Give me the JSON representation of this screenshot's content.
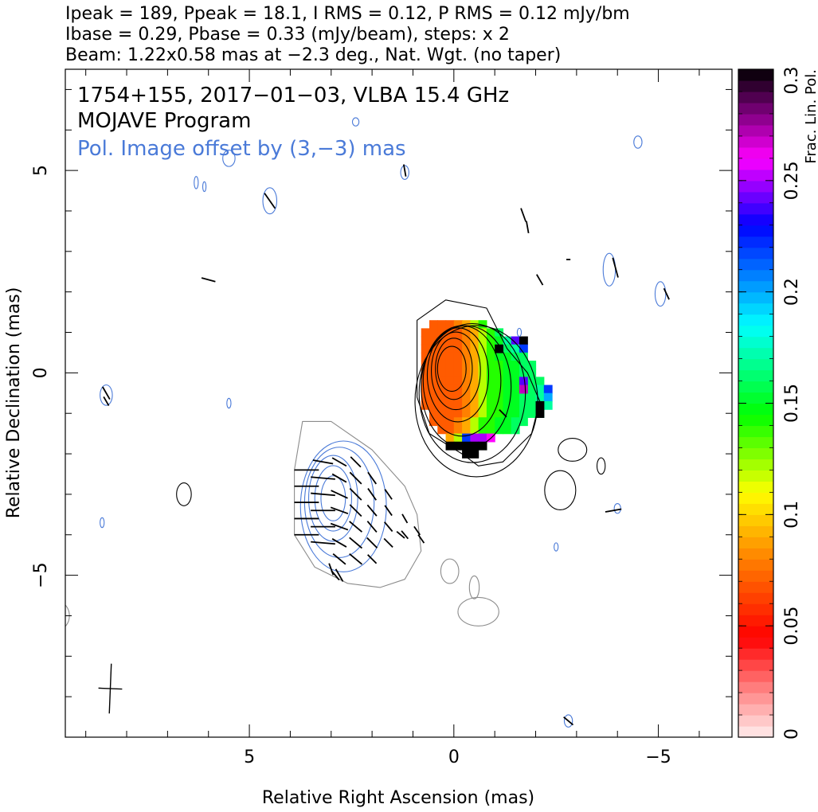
{
  "chart_data": {
    "type": "heatmap",
    "header": {
      "line1": "Ipeak = 189, Ppeak = 18.1, I RMS = 0.12, P RMS = 0.12 mJy/bm",
      "line2": "Ibase = 0.29, Pbase = 0.33 (mJy/beam), steps: x 2",
      "line3": "Beam: 1.22x0.58 mas at −2.3 deg., Nat. Wgt. (no taper)"
    },
    "annotations": {
      "source": "1754+155, 2017−01−03, VLBA 15.4 GHz",
      "program": "MOJAVE Program",
      "offset_note": "Pol. Image offset by (3,−3) mas"
    },
    "xlabel": "Relative Right Ascension (mas)",
    "ylabel": "Relative Declination (mas)",
    "xlim": [
      9.5,
      -6.8
    ],
    "ylim": [
      -9,
      7.5
    ],
    "x_ticks": [
      {
        "value": 5,
        "label": "5"
      },
      {
        "value": 0,
        "label": "0"
      },
      {
        "value": -5,
        "label": "−5"
      }
    ],
    "y_ticks": [
      {
        "value": 5,
        "label": "5"
      },
      {
        "value": 0,
        "label": "0"
      },
      {
        "value": -5,
        "label": "−5"
      }
    ],
    "colorbar": {
      "label": "Frac. Lin. Pol.",
      "range": [
        0,
        0.3
      ],
      "ticks": [
        {
          "value": 0,
          "label": "0"
        },
        {
          "value": 0.05,
          "label": "0.05"
        },
        {
          "value": 0.1,
          "label": "0.1"
        },
        {
          "value": 0.15,
          "label": "0.15"
        },
        {
          "value": 0.2,
          "label": "0.2"
        },
        {
          "value": 0.25,
          "label": "0.25"
        },
        {
          "value": 0.3,
          "label": "0.3"
        }
      ],
      "stops": [
        {
          "value": 0.0,
          "color": "#ffeeee"
        },
        {
          "value": 0.025,
          "color": "#ff7070"
        },
        {
          "value": 0.045,
          "color": "#ff0000"
        },
        {
          "value": 0.08,
          "color": "#ff8000"
        },
        {
          "value": 0.11,
          "color": "#ffff00"
        },
        {
          "value": 0.145,
          "color": "#00ff00"
        },
        {
          "value": 0.185,
          "color": "#00ffff"
        },
        {
          "value": 0.23,
          "color": "#0000ff"
        },
        {
          "value": 0.26,
          "color": "#ff00ff"
        },
        {
          "value": 0.3,
          "color": "#000000"
        }
      ]
    },
    "beam": {
      "major": 1.22,
      "minor": 0.58,
      "pa_deg": -2.3,
      "center": [
        8.4,
        -7.8
      ]
    },
    "stokes_i": {
      "core": [
        0,
        0.1
      ],
      "contour_color": "#000000",
      "contours": [
        {
          "cx": 0.05,
          "cy": 0.1,
          "rx": 0.35,
          "ry": 0.55
        },
        {
          "cx": 0.0,
          "cy": 0.1,
          "rx": 0.45,
          "ry": 0.75
        },
        {
          "cx": -0.05,
          "cy": 0.05,
          "rx": 0.6,
          "ry": 0.95
        },
        {
          "cx": -0.1,
          "cy": -0.05,
          "rx": 0.75,
          "ry": 1.15
        },
        {
          "cx": -0.2,
          "cy": -0.2,
          "rx": 0.95,
          "ry": 1.35
        },
        {
          "cx": -0.3,
          "cy": -0.35,
          "rx": 1.1,
          "ry": 1.5
        },
        {
          "cx": -0.45,
          "cy": -0.5,
          "rx": 1.3,
          "ry": 1.7
        },
        {
          "cx": -0.55,
          "cy": -0.7,
          "rx": 1.5,
          "ry": 1.85
        }
      ],
      "outer": [
        [
          0.9,
          1.3
        ],
        [
          0.2,
          1.8
        ],
        [
          -0.8,
          1.6
        ],
        [
          -1.3,
          0.6
        ],
        [
          -1.8,
          0.0
        ],
        [
          -2.1,
          -0.7
        ],
        [
          -1.9,
          -1.5
        ],
        [
          -1.2,
          -2.2
        ],
        [
          -0.6,
          -2.3
        ],
        [
          -0.2,
          -2.0
        ],
        [
          0.6,
          -1.5
        ],
        [
          0.9,
          -0.6
        ],
        [
          0.9,
          0.4
        ]
      ],
      "islands": [
        {
          "cx": 6.6,
          "cy": -3.0,
          "rx": 0.18,
          "ry": 0.28
        },
        {
          "cx": -2.9,
          "cy": -1.9,
          "rx": 0.35,
          "ry": 0.28
        },
        {
          "cx": -2.6,
          "cy": -2.9,
          "rx": 0.38,
          "ry": 0.48
        },
        {
          "cx": -3.6,
          "cy": -2.3,
          "rx": 0.1,
          "ry": 0.2
        }
      ]
    },
    "frac_pol_pixels": {
      "step": 0.2,
      "rows": [
        {
          "y": 1.2,
          "x0": 0.5,
          "vals": [
            0.07,
            0.07,
            0.07,
            0.08,
            0.09,
            0.12,
            0.14
          ]
        },
        {
          "y": 1.0,
          "x0": 0.7,
          "vals": [
            0.07,
            0.07,
            0.07,
            0.07,
            0.07,
            0.08,
            0.09,
            0.12,
            0.14,
            0.16
          ]
        },
        {
          "y": 0.8,
          "x0": 0.7,
          "vals": [
            0.07,
            0.07,
            0.07,
            0.07,
            0.07,
            0.08,
            0.09,
            0.12,
            0.14,
            0.15,
            0.17,
            0.24,
            0.3
          ]
        },
        {
          "y": 0.6,
          "x0": 0.7,
          "vals": [
            0.07,
            0.07,
            0.07,
            0.07,
            0.07,
            0.08,
            0.09,
            0.12,
            0.14,
            0.15,
            0.16,
            0.17,
            0.22
          ]
        },
        {
          "y": 0.4,
          "x0": 0.7,
          "vals": [
            0.07,
            0.07,
            0.07,
            0.07,
            0.07,
            0.08,
            0.09,
            0.12,
            0.14,
            0.15,
            0.15,
            0.16,
            0.16
          ]
        },
        {
          "y": 0.2,
          "x0": 0.7,
          "vals": [
            0.07,
            0.07,
            0.07,
            0.07,
            0.07,
            0.08,
            0.09,
            0.12,
            0.14,
            0.14,
            0.15,
            0.15,
            0.16,
            0.16
          ]
        },
        {
          "y": 0.0,
          "x0": 0.7,
          "vals": [
            0.07,
            0.07,
            0.07,
            0.07,
            0.07,
            0.08,
            0.09,
            0.12,
            0.14,
            0.14,
            0.15,
            0.15,
            0.16,
            0.16
          ]
        },
        {
          "y": -0.2,
          "x0": 0.7,
          "vals": [
            0.07,
            0.07,
            0.07,
            0.07,
            0.07,
            0.08,
            0.09,
            0.12,
            0.14,
            0.14,
            0.15,
            0.15,
            0.16,
            0.16,
            0.16
          ]
        },
        {
          "y": -0.4,
          "x0": 0.7,
          "vals": [
            0.07,
            0.07,
            0.07,
            0.07,
            0.07,
            0.08,
            0.09,
            0.12,
            0.14,
            0.14,
            0.15,
            0.15,
            0.16,
            0.16,
            0.17,
            0.22
          ]
        },
        {
          "y": -0.6,
          "x0": 0.7,
          "vals": [
            0.07,
            0.07,
            0.07,
            0.07,
            0.07,
            0.08,
            0.09,
            0.12,
            0.14,
            0.14,
            0.15,
            0.15,
            0.16,
            0.16,
            0.17,
            0.2
          ]
        },
        {
          "y": -0.8,
          "x0": 0.7,
          "vals": [
            0.07,
            0.07,
            0.07,
            0.07,
            0.07,
            0.08,
            0.09,
            0.12,
            0.14,
            0.14,
            0.15,
            0.15,
            0.16,
            0.16,
            0.17,
            0.17
          ]
        },
        {
          "y": -1.0,
          "x0": 0.5,
          "vals": [
            0.07,
            0.07,
            0.07,
            0.07,
            0.08,
            0.09,
            0.12,
            0.14,
            0.14,
            0.15,
            0.15,
            0.16,
            0.16,
            0.17
          ]
        },
        {
          "y": -1.2,
          "x0": 0.5,
          "vals": [
            0.07,
            0.07,
            0.07,
            0.08,
            0.09,
            0.12,
            0.14,
            0.14,
            0.15,
            0.15,
            0.16,
            0.16
          ]
        },
        {
          "y": -1.4,
          "x0": 0.3,
          "vals": [
            0.07,
            0.07,
            0.08,
            0.09,
            0.12,
            0.14,
            0.14,
            0.15,
            0.15,
            0.16
          ]
        },
        {
          "y": -1.6,
          "x0": 0.1,
          "vals": [
            0.09,
            0.12,
            0.22,
            0.25,
            0.25,
            0.26
          ]
        },
        {
          "y": -1.8,
          "x0": 0.1,
          "vals": [
            0.3,
            0.3,
            0.3,
            0.3,
            0.3
          ]
        },
        {
          "y": -2.0,
          "x0": -0.3,
          "vals": [
            0.3,
            0.3
          ]
        }
      ],
      "extra": [
        {
          "x": -1.1,
          "y": 0.6,
          "v": 0.3
        },
        {
          "x": -1.7,
          "y": -0.2,
          "v": 0.24
        },
        {
          "x": -1.7,
          "y": -0.4,
          "v": 0.27
        },
        {
          "x": -2.1,
          "y": -0.8,
          "v": 0.3
        },
        {
          "x": -2.1,
          "y": -1.0,
          "v": 0.3
        }
      ]
    },
    "pol_contours": {
      "offset": [
        3,
        -3
      ],
      "color_inner": "#4a7ad8",
      "color_outer": "#8c8c8c",
      "contours": [
        {
          "cx": 2.95,
          "cy": -3.1,
          "rx": 0.3,
          "ry": 0.55,
          "kind": "inner"
        },
        {
          "cx": 2.95,
          "cy": -3.1,
          "rx": 0.45,
          "ry": 0.8,
          "kind": "inner"
        },
        {
          "cx": 2.95,
          "cy": -3.1,
          "rx": 0.6,
          "ry": 1.05,
          "kind": "inner"
        },
        {
          "cx": 2.8,
          "cy": -3.2,
          "rx": 0.85,
          "ry": 1.35,
          "kind": "inner"
        },
        {
          "cx": 2.7,
          "cy": -3.3,
          "rx": 1.05,
          "ry": 1.6,
          "kind": "inner"
        }
      ],
      "outer": [
        [
          3.7,
          -1.2
        ],
        [
          3.0,
          -1.2
        ],
        [
          2.0,
          -1.9
        ],
        [
          1.2,
          -2.8
        ],
        [
          0.9,
          -3.5
        ],
        [
          0.8,
          -4.4
        ],
        [
          1.2,
          -5.1
        ],
        [
          1.8,
          -5.3
        ],
        [
          2.6,
          -5.2
        ],
        [
          3.4,
          -4.8
        ],
        [
          3.9,
          -4.0
        ],
        [
          3.9,
          -2.4
        ]
      ],
      "islands": [
        {
          "cx": 0.1,
          "cy": -4.9,
          "rx": 0.22,
          "ry": 0.3
        },
        {
          "cx": -0.5,
          "cy": -5.3,
          "rx": 0.12,
          "ry": 0.28
        },
        {
          "cx": -0.6,
          "cy": -5.9,
          "rx": 0.5,
          "ry": 0.35
        },
        {
          "cx": 9.7,
          "cy": -6.0,
          "rx": 0.3,
          "ry": 0.35
        }
      ]
    },
    "noise_islands": [
      {
        "cx": 5.5,
        "cy": 5.3,
        "rx": 0.15,
        "ry": 0.2
      },
      {
        "cx": 6.3,
        "cy": 4.7,
        "rx": 0.05,
        "ry": 0.15
      },
      {
        "cx": 4.5,
        "cy": 4.25,
        "rx": 0.17,
        "ry": 0.32
      },
      {
        "cx": 2.4,
        "cy": 6.2,
        "rx": 0.08,
        "ry": 0.1
      },
      {
        "cx": 1.2,
        "cy": 4.95,
        "rx": 0.1,
        "ry": 0.17
      },
      {
        "cx": 8.5,
        "cy": -0.55,
        "rx": 0.15,
        "ry": 0.25
      },
      {
        "cx": 5.5,
        "cy": -0.75,
        "rx": 0.05,
        "ry": 0.12
      },
      {
        "cx": 8.6,
        "cy": -3.7,
        "rx": 0.05,
        "ry": 0.12
      },
      {
        "cx": -1.6,
        "cy": 1.0,
        "rx": 0.05,
        "ry": 0.1
      },
      {
        "cx": -3.8,
        "cy": 2.55,
        "rx": 0.15,
        "ry": 0.4
      },
      {
        "cx": -5.05,
        "cy": 1.95,
        "rx": 0.13,
        "ry": 0.3
      },
      {
        "cx": -4.5,
        "cy": 5.7,
        "rx": 0.1,
        "ry": 0.15
      },
      {
        "cx": -4.0,
        "cy": -3.35,
        "rx": 0.08,
        "ry": 0.12
      },
      {
        "cx": -2.5,
        "cy": -4.3,
        "rx": 0.05,
        "ry": 0.1
      },
      {
        "cx": -2.8,
        "cy": -8.6,
        "rx": 0.1,
        "ry": 0.15
      },
      {
        "cx": 6.1,
        "cy": 4.6,
        "rx": 0.04,
        "ry": 0.12
      }
    ],
    "evpa_vectors": {
      "color": "#000000",
      "vectors": [
        {
          "x": 3.6,
          "y": -2.4,
          "len": 0.6,
          "ang": 0
        },
        {
          "x": 3.6,
          "y": -2.8,
          "len": 0.6,
          "ang": 0
        },
        {
          "x": 3.6,
          "y": -3.2,
          "len": 0.6,
          "ang": 0
        },
        {
          "x": 3.6,
          "y": -3.6,
          "len": 0.6,
          "ang": 0
        },
        {
          "x": 3.6,
          "y": -4.0,
          "len": 0.6,
          "ang": 0
        },
        {
          "x": 3.2,
          "y": -2.2,
          "len": 0.5,
          "ang": 10
        },
        {
          "x": 3.2,
          "y": -2.6,
          "len": 0.6,
          "ang": 5
        },
        {
          "x": 3.2,
          "y": -3.0,
          "len": 0.6,
          "ang": 5
        },
        {
          "x": 3.2,
          "y": -3.4,
          "len": 0.6,
          "ang": 0
        },
        {
          "x": 3.2,
          "y": -3.8,
          "len": 0.6,
          "ang": 0
        },
        {
          "x": 3.2,
          "y": -4.2,
          "len": 0.6,
          "ang": 5
        },
        {
          "x": 2.8,
          "y": -2.2,
          "len": 0.4,
          "ang": 30
        },
        {
          "x": 2.8,
          "y": -2.6,
          "len": 0.4,
          "ang": 30
        },
        {
          "x": 2.8,
          "y": -3.0,
          "len": 0.45,
          "ang": 25
        },
        {
          "x": 2.8,
          "y": -3.4,
          "len": 0.45,
          "ang": 20
        },
        {
          "x": 2.8,
          "y": -3.8,
          "len": 0.45,
          "ang": 20
        },
        {
          "x": 2.8,
          "y": -4.2,
          "len": 0.4,
          "ang": 30
        },
        {
          "x": 2.8,
          "y": -4.6,
          "len": 0.4,
          "ang": 40
        },
        {
          "x": 2.4,
          "y": -2.2,
          "len": 0.35,
          "ang": 45
        },
        {
          "x": 2.4,
          "y": -2.6,
          "len": 0.4,
          "ang": 45
        },
        {
          "x": 2.4,
          "y": -3.0,
          "len": 0.4,
          "ang": 45
        },
        {
          "x": 2.4,
          "y": -3.4,
          "len": 0.4,
          "ang": 45
        },
        {
          "x": 2.4,
          "y": -3.8,
          "len": 0.4,
          "ang": 40
        },
        {
          "x": 2.4,
          "y": -4.2,
          "len": 0.4,
          "ang": 40
        },
        {
          "x": 2.4,
          "y": -4.6,
          "len": 0.4,
          "ang": 40
        },
        {
          "x": 2.0,
          "y": -2.6,
          "len": 0.35,
          "ang": 55
        },
        {
          "x": 2.0,
          "y": -3.0,
          "len": 0.35,
          "ang": 55
        },
        {
          "x": 2.0,
          "y": -3.4,
          "len": 0.35,
          "ang": 50
        },
        {
          "x": 2.0,
          "y": -3.8,
          "len": 0.35,
          "ang": 50
        },
        {
          "x": 2.0,
          "y": -4.2,
          "len": 0.35,
          "ang": 45
        },
        {
          "x": 2.0,
          "y": -4.6,
          "len": 0.3,
          "ang": 45
        },
        {
          "x": 1.6,
          "y": -3.0,
          "len": 0.3,
          "ang": 55
        },
        {
          "x": 1.6,
          "y": -3.4,
          "len": 0.3,
          "ang": 55
        },
        {
          "x": 1.6,
          "y": -3.8,
          "len": 0.3,
          "ang": 50
        },
        {
          "x": 1.6,
          "y": -4.2,
          "len": 0.3,
          "ang": 45
        },
        {
          "x": 1.2,
          "y": -3.6,
          "len": 0.25,
          "ang": 60
        },
        {
          "x": 1.2,
          "y": -4.0,
          "len": 0.25,
          "ang": 50
        },
        {
          "x": 0.9,
          "y": -3.9,
          "len": 0.25,
          "ang": 55
        },
        {
          "x": 2.8,
          "y": -5.0,
          "len": 0.35,
          "ang": 60
        },
        {
          "x": 3.0,
          "y": -4.85,
          "len": 0.3,
          "ang": 70
        },
        {
          "x": 6.0,
          "y": 2.3,
          "len": 0.35,
          "ang": 15
        },
        {
          "x": 4.5,
          "y": 4.25,
          "len": 0.45,
          "ang": 55
        },
        {
          "x": 8.5,
          "y": -0.5,
          "len": 0.35,
          "ang": 60
        },
        {
          "x": 8.5,
          "y": -0.7,
          "len": 0.25,
          "ang": 60
        },
        {
          "x": 1.2,
          "y": 5.0,
          "len": 0.3,
          "ang": 80
        },
        {
          "x": -1.7,
          "y": 3.9,
          "len": 0.35,
          "ang": 70
        },
        {
          "x": -1.8,
          "y": 3.6,
          "len": 0.3,
          "ang": 80
        },
        {
          "x": -2.1,
          "y": 2.3,
          "len": 0.3,
          "ang": 60
        },
        {
          "x": -2.8,
          "y": 2.8,
          "len": 0.1,
          "ang": 0
        },
        {
          "x": -3.95,
          "y": 2.6,
          "len": 0.5,
          "ang": 75
        },
        {
          "x": -5.2,
          "y": 1.95,
          "len": 0.3,
          "ang": 65
        },
        {
          "x": -1.2,
          "y": -1.0,
          "len": 0.25,
          "ang": 45
        },
        {
          "x": -2.1,
          "y": -0.9,
          "len": 0.3,
          "ang": 90
        },
        {
          "x": -3.9,
          "y": -3.4,
          "len": 0.4,
          "ang": -10
        },
        {
          "x": 2.9,
          "y": -5.0,
          "len": 0.3,
          "ang": 50
        },
        {
          "x": -2.8,
          "y": -8.6,
          "len": 0.3,
          "ang": 40
        },
        {
          "x": 1.3,
          "y": -4.0,
          "len": 0.25,
          "ang": 40
        },
        {
          "x": 0.8,
          "y": -4.1,
          "len": 0.25,
          "ang": 55
        }
      ]
    }
  }
}
